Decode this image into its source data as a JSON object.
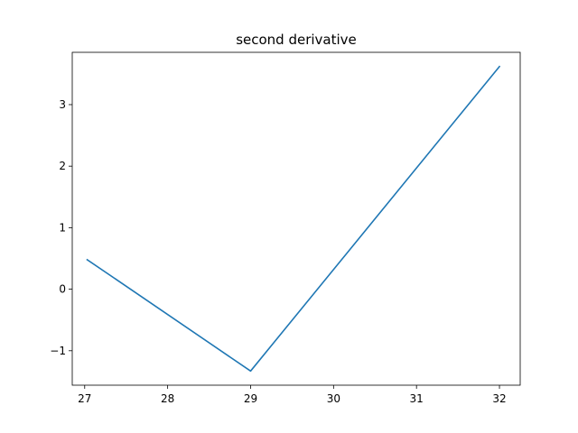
{
  "chart_data": {
    "type": "line",
    "title": "second derivative",
    "xlabel": "",
    "ylabel": "",
    "xlim": [
      26.85,
      32.25
    ],
    "ylim": [
      -1.56,
      3.85
    ],
    "xticks": [
      27,
      28,
      29,
      30,
      31,
      32
    ],
    "xtick_labels": [
      "27",
      "28",
      "29",
      "30",
      "31",
      "32"
    ],
    "yticks": [
      -1,
      0,
      1,
      2,
      3
    ],
    "ytick_labels": [
      "−1",
      "0",
      "1",
      "2",
      "3"
    ],
    "grid": false,
    "series": [
      {
        "color": "#1f77b4",
        "x": [
          27.03,
          29.0,
          32.0
        ],
        "y": [
          0.48,
          -1.33,
          3.62
        ]
      }
    ]
  }
}
